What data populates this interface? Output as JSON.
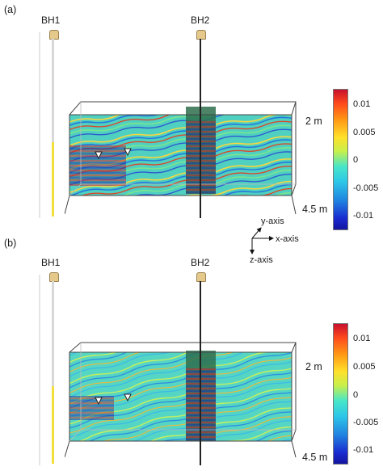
{
  "panels": [
    {
      "tag": "(a)",
      "bh1": "BH1",
      "bh2": "BH2",
      "depth_top": "2 m",
      "depth_bottom": "4.5 m",
      "colorbar_ticks": [
        "0.01",
        "0.005",
        "0",
        "-0.005",
        "-0.01"
      ]
    },
    {
      "tag": "(b)",
      "bh1": "BH1",
      "bh2": "BH2",
      "depth_top": "2 m",
      "depth_bottom": "4.5 m",
      "colorbar_ticks": [
        "0.01",
        "0.005",
        "0",
        "-0.005",
        "-0.01"
      ]
    }
  ],
  "axes": {
    "y": "y-axis",
    "x": "x-axis",
    "z": "z-axis"
  },
  "colors": {
    "colorbar_top": "#c8102e",
    "colorbar_mid": "#47e6c8",
    "colorbar_bottom": "#1414a0",
    "slice_background": "#4fd0c0",
    "borehole_zone": "#2e6e4e",
    "yellow_segment": "#f2df3a"
  }
}
